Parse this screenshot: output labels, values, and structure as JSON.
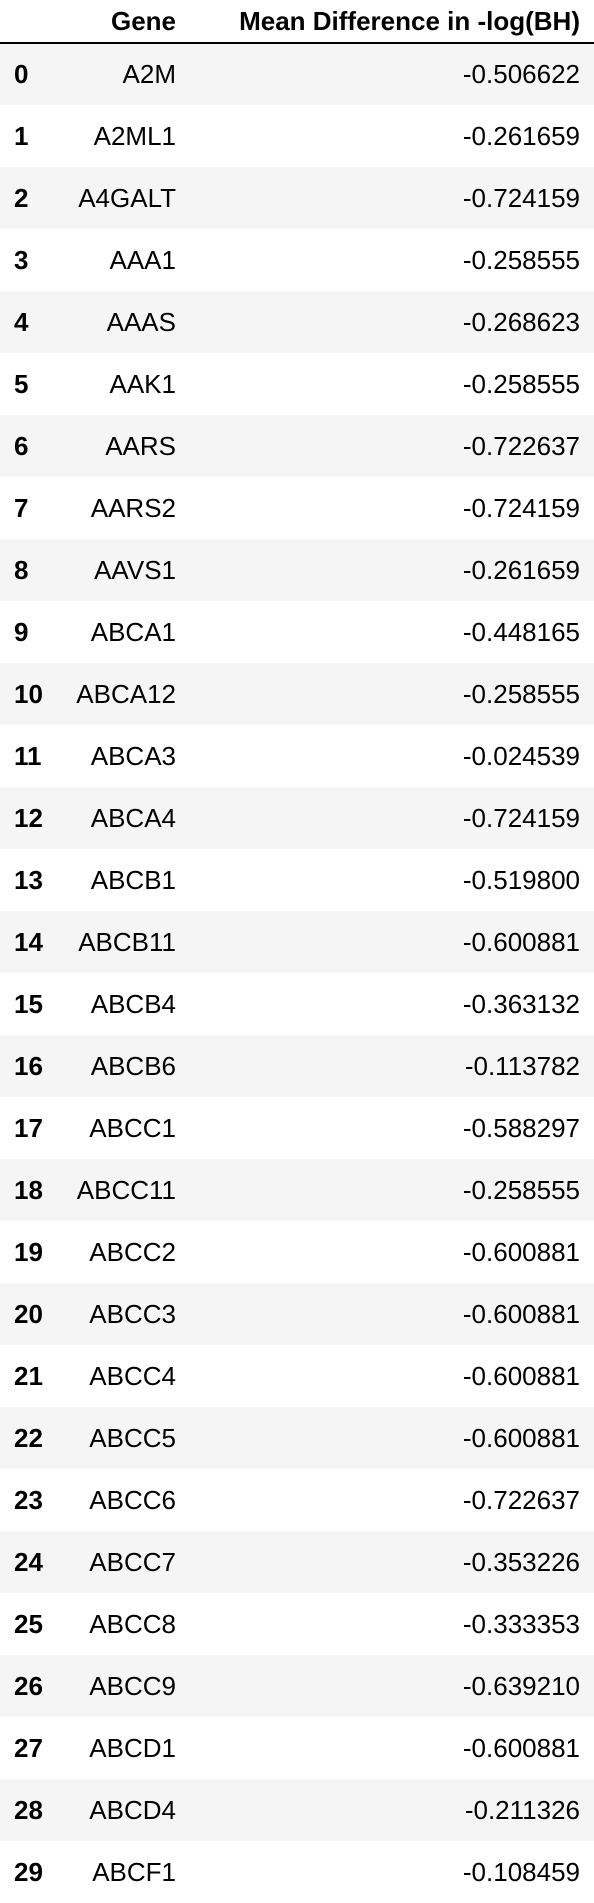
{
  "table": {
    "columns": [
      "",
      "Gene",
      "Mean Difference in -log(BH)"
    ],
    "rows": [
      {
        "index": "0",
        "gene": "A2M",
        "value": "-0.506622"
      },
      {
        "index": "1",
        "gene": "A2ML1",
        "value": "-0.261659"
      },
      {
        "index": "2",
        "gene": "A4GALT",
        "value": "-0.724159"
      },
      {
        "index": "3",
        "gene": "AAA1",
        "value": "-0.258555"
      },
      {
        "index": "4",
        "gene": "AAAS",
        "value": "-0.268623"
      },
      {
        "index": "5",
        "gene": "AAK1",
        "value": "-0.258555"
      },
      {
        "index": "6",
        "gene": "AARS",
        "value": "-0.722637"
      },
      {
        "index": "7",
        "gene": "AARS2",
        "value": "-0.724159"
      },
      {
        "index": "8",
        "gene": "AAVS1",
        "value": "-0.261659"
      },
      {
        "index": "9",
        "gene": "ABCA1",
        "value": "-0.448165"
      },
      {
        "index": "10",
        "gene": "ABCA12",
        "value": "-0.258555"
      },
      {
        "index": "11",
        "gene": "ABCA3",
        "value": "-0.024539"
      },
      {
        "index": "12",
        "gene": "ABCA4",
        "value": "-0.724159"
      },
      {
        "index": "13",
        "gene": "ABCB1",
        "value": "-0.519800"
      },
      {
        "index": "14",
        "gene": "ABCB11",
        "value": "-0.600881"
      },
      {
        "index": "15",
        "gene": "ABCB4",
        "value": "-0.363132"
      },
      {
        "index": "16",
        "gene": "ABCB6",
        "value": "-0.113782"
      },
      {
        "index": "17",
        "gene": "ABCC1",
        "value": "-0.588297"
      },
      {
        "index": "18",
        "gene": "ABCC11",
        "value": "-0.258555"
      },
      {
        "index": "19",
        "gene": "ABCC2",
        "value": "-0.600881"
      },
      {
        "index": "20",
        "gene": "ABCC3",
        "value": "-0.600881"
      },
      {
        "index": "21",
        "gene": "ABCC4",
        "value": "-0.600881"
      },
      {
        "index": "22",
        "gene": "ABCC5",
        "value": "-0.600881"
      },
      {
        "index": "23",
        "gene": "ABCC6",
        "value": "-0.722637"
      },
      {
        "index": "24",
        "gene": "ABCC7",
        "value": "-0.353226"
      },
      {
        "index": "25",
        "gene": "ABCC8",
        "value": "-0.333353"
      },
      {
        "index": "26",
        "gene": "ABCC9",
        "value": "-0.639210"
      },
      {
        "index": "27",
        "gene": "ABCD1",
        "value": "-0.600881"
      },
      {
        "index": "28",
        "gene": "ABCD4",
        "value": "-0.211326"
      },
      {
        "index": "29",
        "gene": "ABCF1",
        "value": "-0.108459"
      }
    ]
  }
}
